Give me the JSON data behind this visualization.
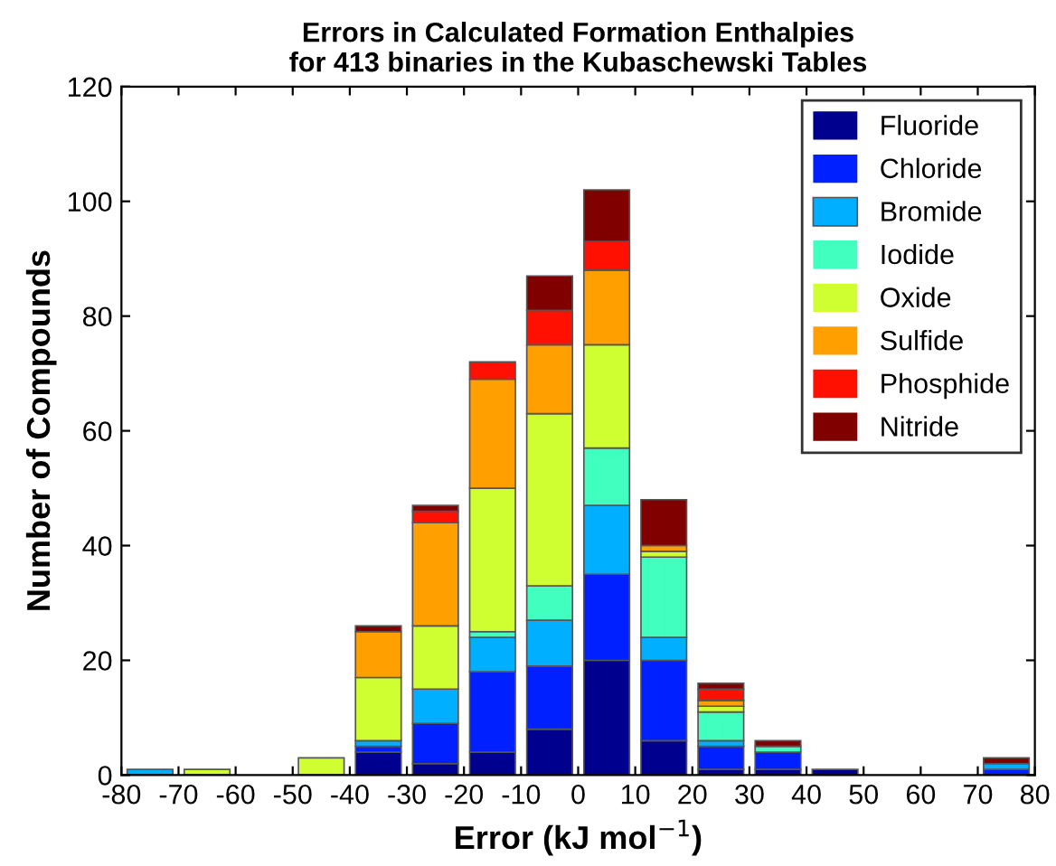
{
  "chart_data": {
    "type": "bar",
    "stacked": true,
    "title": "Errors in Calculated Formation Enthalpies\nfor 413 binaries in the Kubaschewski Tables",
    "xlabel": "Error (kJ mol$^{−1}$)",
    "ylabel": "Number of Compounds",
    "x": [
      -75,
      -65,
      -45,
      -35,
      -25,
      -15,
      -5,
      5,
      15,
      25,
      35,
      45,
      75
    ],
    "series": [
      {
        "name": "Fluoride",
        "color": "#00008f",
        "values": [
          0,
          0,
          0,
          4,
          2,
          4,
          8,
          20,
          6,
          1,
          1,
          1,
          0
        ]
      },
      {
        "name": "Chloride",
        "color": "#0020ff",
        "values": [
          0,
          0,
          0,
          1,
          7,
          14,
          11,
          15,
          14,
          4,
          3,
          0,
          1
        ]
      },
      {
        "name": "Bromide",
        "color": "#00afff",
        "values": [
          1,
          0,
          0,
          1,
          6,
          6,
          8,
          12,
          4,
          1,
          0,
          0,
          1
        ]
      },
      {
        "name": "Iodide",
        "color": "#40ffbf",
        "values": [
          0,
          0,
          0,
          0,
          0,
          1,
          6,
          10,
          14,
          5,
          1,
          0,
          0
        ]
      },
      {
        "name": "Oxide",
        "color": "#cfff30",
        "values": [
          0,
          1,
          3,
          11,
          11,
          25,
          30,
          18,
          1,
          1,
          0,
          0,
          0
        ]
      },
      {
        "name": "Sulfide",
        "color": "#ff9f00",
        "values": [
          0,
          0,
          0,
          8,
          18,
          19,
          12,
          13,
          1,
          1,
          0,
          0,
          0
        ]
      },
      {
        "name": "Phosphide",
        "color": "#ff1000",
        "values": [
          0,
          0,
          0,
          0,
          2,
          3,
          6,
          5,
          0,
          2,
          0,
          0,
          0
        ]
      },
      {
        "name": "Nitride",
        "color": "#800000",
        "values": [
          0,
          0,
          0,
          1,
          1,
          0,
          6,
          9,
          8,
          1,
          1,
          0,
          1
        ]
      }
    ],
    "xlim": [
      -80,
      80
    ],
    "xticks": [
      -80,
      -70,
      -60,
      -50,
      -40,
      -30,
      -20,
      -10,
      0,
      10,
      20,
      30,
      40,
      50,
      60,
      70,
      80
    ],
    "ylim": [
      0,
      120
    ],
    "yticks": [
      0,
      20,
      40,
      60,
      80,
      100,
      120
    ],
    "legend": "top right"
  }
}
